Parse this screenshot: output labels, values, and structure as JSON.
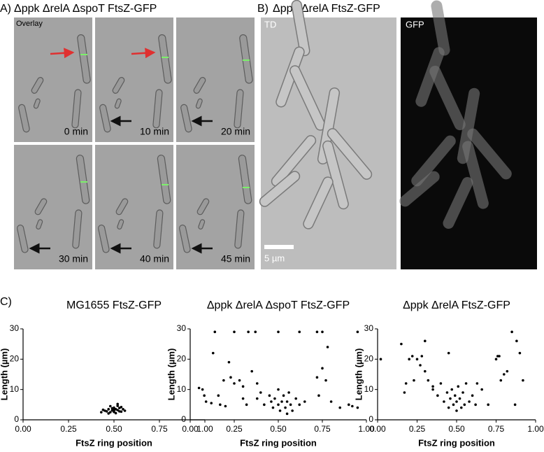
{
  "figure": {
    "panel_a": {
      "letter": "A)",
      "title": "Δppk ΔrelA ΔspoT FtsZ-GFP",
      "overlay": "Overlay",
      "times": [
        "0 min",
        "10 min",
        "20 min",
        "30 min",
        "40 min",
        "45 min"
      ]
    },
    "panel_b": {
      "letter": "B)",
      "title": "Δppk ΔrelA FtsZ-GFP",
      "td": "TD",
      "gfp": "GFP",
      "scale": "5 µm"
    },
    "panel_c": {
      "letter": "C)"
    }
  },
  "chart_data": [
    {
      "type": "scatter",
      "title": "MG1655 FtsZ-GFP",
      "xlabel": "FtsZ ring position",
      "ylabel": "Length (µm)",
      "color": "#000000",
      "x": [
        0.45,
        0.47,
        0.48,
        0.5,
        0.5,
        0.52,
        0.53,
        0.49,
        0.51,
        0.54,
        0.46,
        0.55,
        0.52,
        0.44,
        0.48,
        0.5,
        0.53,
        0.47,
        0.51,
        0.56,
        0.43,
        0.49,
        0.52,
        0.5,
        0.54
      ],
      "values": [
        3,
        3.5,
        2.5,
        3,
        4,
        3.2,
        2.8,
        3.8,
        2.2,
        4.2,
        2.8,
        3.5,
        5.2,
        3.3,
        4.5,
        2.6,
        3.9,
        2.1,
        3.5,
        3,
        2.5,
        3.1,
        4.6,
        3.7,
        2.7
      ],
      "xlim": [
        0,
        1
      ],
      "xticks": [
        {
          "value": 0,
          "label": "0.00"
        },
        {
          "value": 0.25,
          "label": "0.25"
        },
        {
          "value": 0.5,
          "label": "0.50"
        },
        {
          "value": 0.75,
          "label": "0.75"
        },
        {
          "value": 1,
          "label": "1.00"
        }
      ],
      "ylim": [
        0,
        30
      ],
      "yticks": [
        0,
        10,
        20,
        30
      ]
    },
    {
      "type": "scatter",
      "title": "Δppk ΔrelA ΔspoT FtsZ-GFP",
      "xlabel": "FtsZ ring position",
      "ylabel": "Length (µm)",
      "color": "#000000",
      "x": [
        0.14,
        0.25,
        0.33,
        0.37,
        0.5,
        0.62,
        0.72,
        0.75,
        0.95,
        0.05,
        0.07,
        0.09,
        0.12,
        0.13,
        0.16,
        0.17,
        0.19,
        0.2,
        0.22,
        0.23,
        0.25,
        0.28,
        0.3,
        0.3,
        0.32,
        0.35,
        0.38,
        0.38,
        0.4,
        0.42,
        0.45,
        0.46,
        0.47,
        0.48,
        0.5,
        0.5,
        0.51,
        0.52,
        0.53,
        0.54,
        0.55,
        0.56,
        0.57,
        0.58,
        0.6,
        0.62,
        0.65,
        0.72,
        0.73,
        0.75,
        0.77,
        0.8,
        0.85,
        0.9,
        0.92,
        0.95,
        0.78,
        0.08,
        0.55
      ],
      "values": [
        29,
        29,
        29,
        29,
        29,
        29,
        29,
        29,
        29,
        10.5,
        10,
        6,
        5.5,
        22,
        8,
        5,
        13,
        4.5,
        19,
        14,
        12,
        13,
        11,
        7,
        5,
        16,
        12,
        7,
        9,
        5,
        8,
        6,
        4,
        7,
        10,
        5,
        3,
        6,
        8,
        4,
        6,
        9,
        5,
        3,
        7,
        5,
        6,
        14,
        8,
        17,
        13,
        6,
        4,
        5,
        4.5,
        4,
        24,
        8,
        2
      ],
      "xlim": [
        0,
        1
      ],
      "xticks": [
        {
          "value": 0,
          "label": "0.00"
        },
        {
          "value": 0.25,
          "label": "0.25"
        },
        {
          "value": 0.5,
          "label": "0.50"
        },
        {
          "value": 0.75,
          "label": "0.75"
        },
        {
          "value": 1,
          "label": "1.00"
        }
      ],
      "ylim": [
        0,
        30
      ],
      "yticks": [
        0,
        10,
        20,
        30
      ]
    },
    {
      "type": "scatter",
      "title": "Δppk ΔrelA FtsZ-GFP",
      "xlabel": "FtsZ ring position",
      "ylabel": "Length (µm)",
      "color": "#000000",
      "x": [
        0.02,
        0.15,
        0.17,
        0.2,
        0.22,
        0.25,
        0.27,
        0.28,
        0.3,
        0.3,
        0.32,
        0.35,
        0.38,
        0.4,
        0.42,
        0.44,
        0.45,
        0.46,
        0.47,
        0.48,
        0.49,
        0.5,
        0.5,
        0.51,
        0.52,
        0.53,
        0.54,
        0.55,
        0.56,
        0.58,
        0.6,
        0.62,
        0.66,
        0.7,
        0.75,
        0.76,
        0.77,
        0.78,
        0.8,
        0.82,
        0.85,
        0.88,
        0.9,
        0.87,
        0.92,
        0.45,
        0.35,
        0.23,
        0.63,
        0.18
      ],
      "values": [
        20,
        25,
        9,
        20,
        21,
        20,
        18,
        21,
        16,
        26,
        13,
        10,
        8,
        12,
        6,
        9,
        4,
        7,
        10,
        5,
        8,
        3,
        6,
        11,
        7,
        4,
        9,
        5,
        12,
        6,
        8,
        5,
        10,
        5,
        20,
        21,
        21,
        13,
        15,
        16,
        29,
        26,
        22,
        5,
        13,
        22,
        11,
        13,
        12,
        12
      ],
      "xlim": [
        0,
        1
      ],
      "xticks": [
        {
          "value": 0,
          "label": "0.00"
        },
        {
          "value": 0.25,
          "label": "0.25"
        },
        {
          "value": 0.5,
          "label": "0.50"
        },
        {
          "value": 0.75,
          "label": "0.75"
        },
        {
          "value": 1,
          "label": "1.00"
        }
      ],
      "ylim": [
        0,
        30
      ],
      "yticks": [
        0,
        10,
        20,
        30
      ]
    }
  ]
}
